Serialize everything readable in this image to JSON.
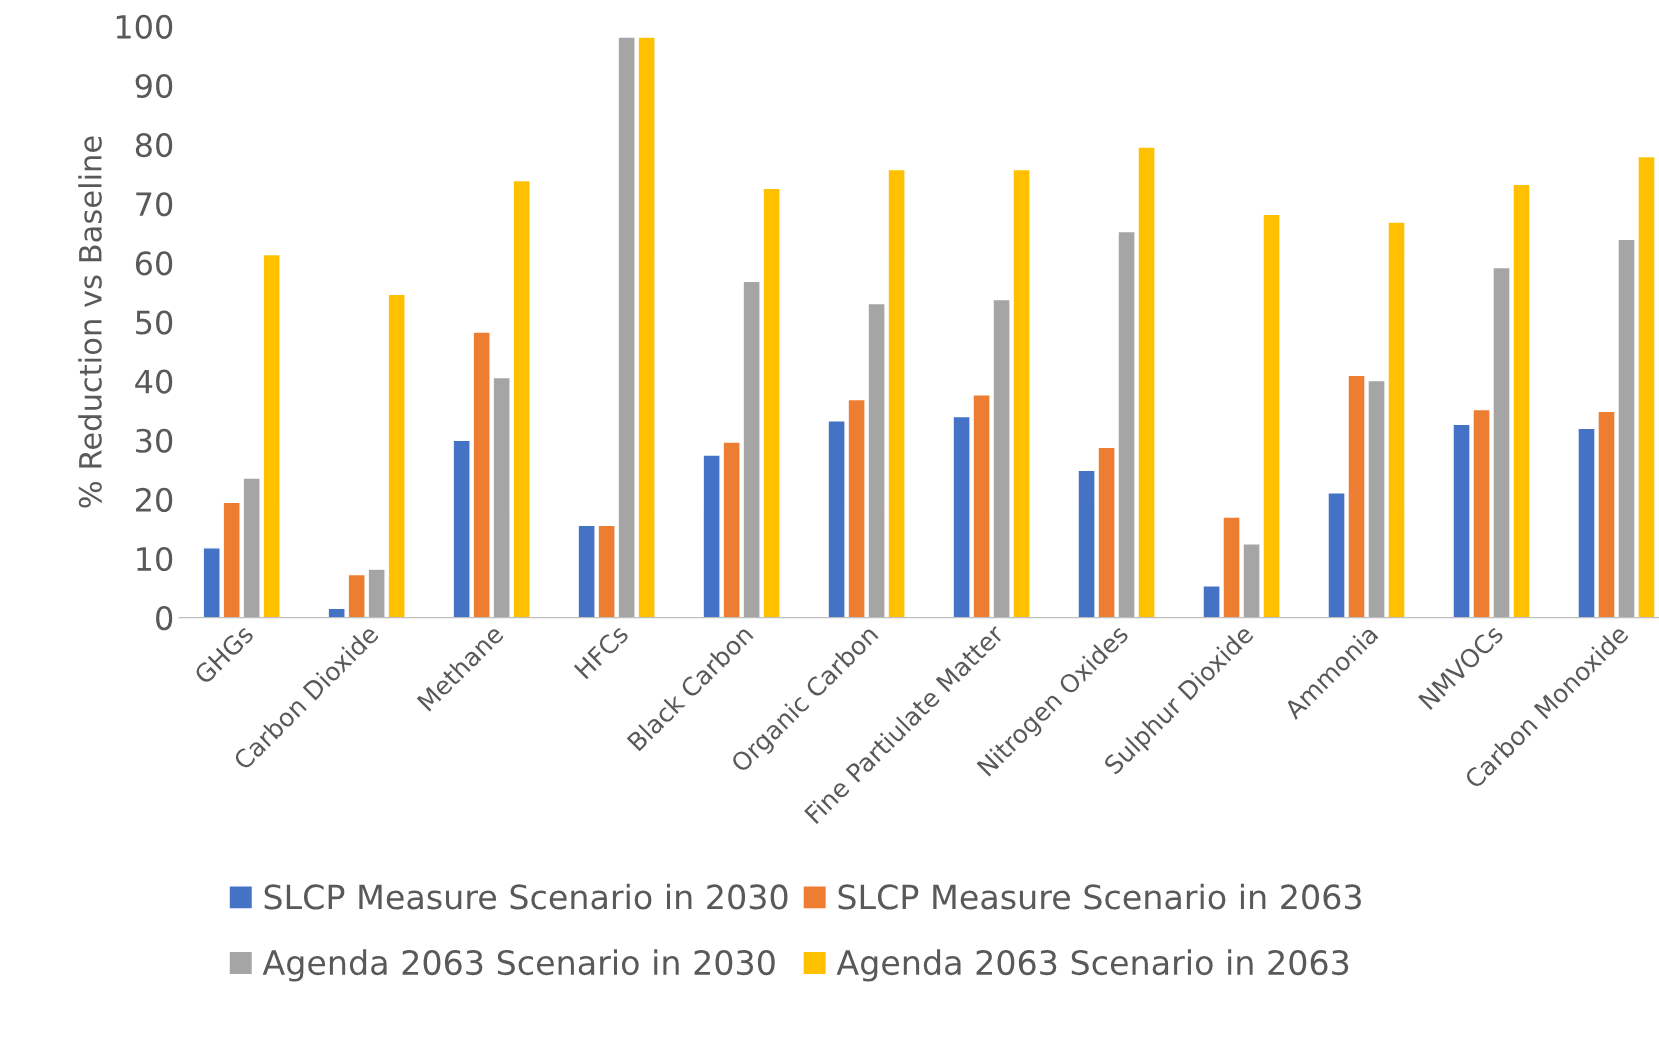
{
  "chart_data": {
    "type": "bar",
    "ylabel": "% Reduction vs Baseline",
    "categories": [
      "GHGs",
      "Carbon Dioxide",
      "Methane",
      "HFCs",
      "Black Carbon",
      "Organic Carbon",
      "Fine Partiulate Matter",
      "Nitrogen Oxides",
      "Sulphur Dioxide",
      "Ammonia",
      "NMVOCs",
      "Carbon Monoxide"
    ],
    "series": [
      {
        "name": "SLCP Measure Scenario in 2030",
        "color": "#4472c4",
        "values": [
          11.8,
          1.6,
          30,
          15.6,
          27.5,
          33.3,
          34,
          24.9,
          5.4,
          21.1,
          32.7,
          32
        ]
      },
      {
        "name": "SLCP Measure Scenario in 2063",
        "color": "#ed7d31",
        "values": [
          19.5,
          7.3,
          48.3,
          15.6,
          29.7,
          36.9,
          37.7,
          28.8,
          17,
          41,
          35.2,
          34.9
        ]
      },
      {
        "name": "Agenda 2063 Scenario in 2030",
        "color": "#a5a5a5",
        "values": [
          23.6,
          8.2,
          40.6,
          98.2,
          56.9,
          53.1,
          53.8,
          65.3,
          12.5,
          40.1,
          59.2,
          64
        ]
      },
      {
        "name": "Agenda 2063 Scenario in 2063",
        "color": "#ffc000",
        "values": [
          61.4,
          54.7,
          73.9,
          98.2,
          72.6,
          75.8,
          75.8,
          79.6,
          68.2,
          66.9,
          73.3,
          78
        ]
      }
    ],
    "ylim": [
      0,
      100
    ],
    "yticks": [
      0,
      10,
      20,
      30,
      40,
      50,
      60,
      70,
      80,
      90,
      100
    ],
    "grid": false,
    "legend": "bottom"
  }
}
